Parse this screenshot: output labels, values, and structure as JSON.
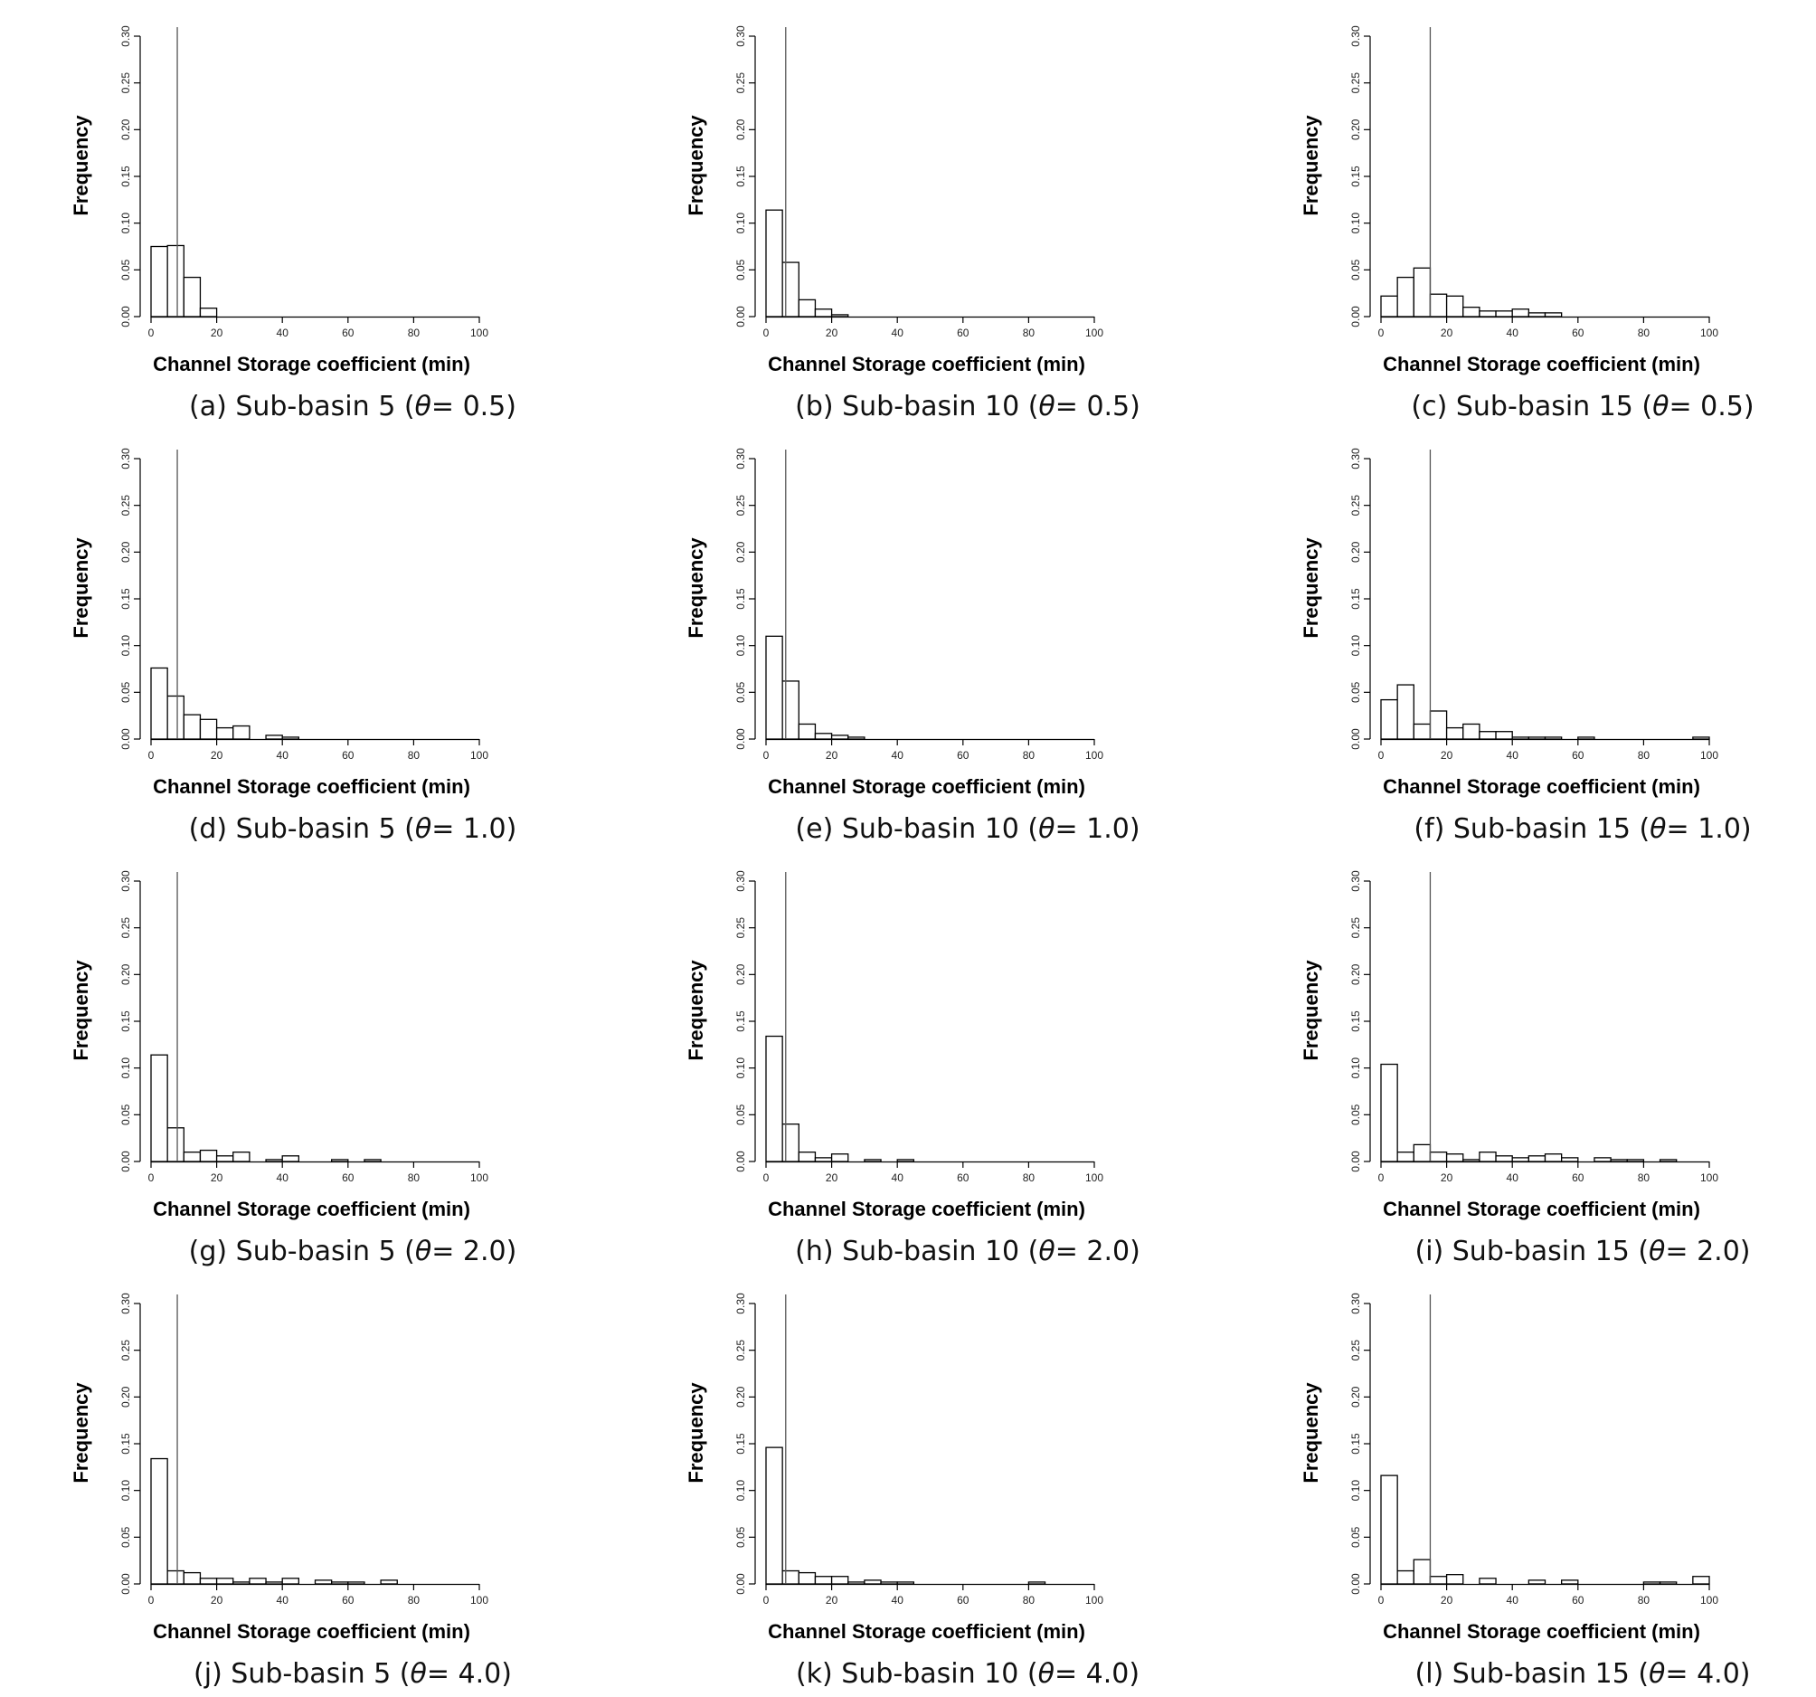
{
  "colors": {
    "bar_fill": "#ffffff",
    "bar_stroke": "#000000",
    "axis": "#000000",
    "ref_line": "#555555"
  },
  "chart_data": [
    {
      "id": "a",
      "type": "bar",
      "caption_prefix": "(a) Sub-basin 5 (",
      "theta_symbol": "θ",
      "caption_suffix": "= 0.5)",
      "xlabel": "Channel Storage coefficient (min)",
      "ylabel": "Frequency",
      "xlim": [
        0,
        100
      ],
      "ylim": [
        0,
        0.3
      ],
      "xticks": [
        "0",
        "20",
        "40",
        "60",
        "80",
        "100"
      ],
      "yticks": [
        "0.00",
        "0.05",
        "0.10",
        "0.15",
        "0.20",
        "0.25",
        "0.30"
      ],
      "bin_width": 5,
      "bins": [
        0,
        5,
        10,
        15
      ],
      "values": [
        0.075,
        0.076,
        0.042,
        0.009
      ],
      "ref_line": 8
    },
    {
      "id": "b",
      "type": "bar",
      "caption_prefix": "(b) Sub-basin 10 (",
      "theta_symbol": "θ",
      "caption_suffix": "= 0.5)",
      "xlabel": "Channel Storage coefficient (min)",
      "ylabel": "Frequency",
      "xlim": [
        0,
        100
      ],
      "ylim": [
        0,
        0.3
      ],
      "xticks": [
        "0",
        "20",
        "40",
        "60",
        "80",
        "100"
      ],
      "yticks": [
        "0.00",
        "0.05",
        "0.10",
        "0.15",
        "0.20",
        "0.25",
        "0.30"
      ],
      "bin_width": 5,
      "bins": [
        0,
        5,
        10,
        15,
        20
      ],
      "values": [
        0.114,
        0.058,
        0.018,
        0.008,
        0.002
      ],
      "ref_line": 6
    },
    {
      "id": "c",
      "type": "bar",
      "caption_prefix": "(c) Sub-basin 15 (",
      "theta_symbol": "θ",
      "caption_suffix": "= 0.5)",
      "xlabel": "Channel Storage coefficient (min)",
      "ylabel": "Frequency",
      "xlim": [
        0,
        100
      ],
      "ylim": [
        0,
        0.3
      ],
      "xticks": [
        "0",
        "20",
        "40",
        "60",
        "80",
        "100"
      ],
      "yticks": [
        "0.00",
        "0.05",
        "0.10",
        "0.15",
        "0.20",
        "0.25",
        "0.30"
      ],
      "bin_width": 5,
      "bins": [
        0,
        5,
        10,
        15,
        20,
        25,
        30,
        35,
        40,
        45,
        50
      ],
      "values": [
        0.022,
        0.042,
        0.052,
        0.024,
        0.022,
        0.01,
        0.006,
        0.006,
        0.008,
        0.004,
        0.004
      ],
      "ref_line": 15
    },
    {
      "id": "d",
      "type": "bar",
      "caption_prefix": "(d) Sub-basin 5 (",
      "theta_symbol": "θ",
      "caption_suffix": "= 1.0)",
      "xlabel": "Channel Storage coefficient (min)",
      "ylabel": "Frequency",
      "xlim": [
        0,
        100
      ],
      "ylim": [
        0,
        0.3
      ],
      "xticks": [
        "0",
        "20",
        "40",
        "60",
        "80",
        "100"
      ],
      "yticks": [
        "0.00",
        "0.05",
        "0.10",
        "0.15",
        "0.20",
        "0.25",
        "0.30"
      ],
      "bin_width": 5,
      "bins": [
        0,
        5,
        10,
        15,
        20,
        25,
        35,
        40
      ],
      "values": [
        0.076,
        0.046,
        0.026,
        0.021,
        0.012,
        0.014,
        0.004,
        0.002
      ],
      "ref_line": 8
    },
    {
      "id": "e",
      "type": "bar",
      "caption_prefix": "(e) Sub-basin 10 (",
      "theta_symbol": "θ",
      "caption_suffix": "= 1.0)",
      "xlabel": "Channel Storage coefficient (min)",
      "ylabel": "Frequency",
      "xlim": [
        0,
        100
      ],
      "ylim": [
        0,
        0.3
      ],
      "xticks": [
        "0",
        "20",
        "40",
        "60",
        "80",
        "100"
      ],
      "yticks": [
        "0.00",
        "0.05",
        "0.10",
        "0.15",
        "0.20",
        "0.25",
        "0.30"
      ],
      "bin_width": 5,
      "bins": [
        0,
        5,
        10,
        15,
        20,
        25
      ],
      "values": [
        0.11,
        0.062,
        0.016,
        0.006,
        0.004,
        0.002
      ],
      "ref_line": 6
    },
    {
      "id": "f",
      "type": "bar",
      "caption_prefix": "(f) Sub-basin 15 (",
      "theta_symbol": "θ",
      "caption_suffix": "= 1.0)",
      "xlabel": "Channel Storage coefficient (min)",
      "ylabel": "Frequency",
      "xlim": [
        0,
        100
      ],
      "ylim": [
        0,
        0.3
      ],
      "xticks": [
        "0",
        "20",
        "40",
        "60",
        "80",
        "100"
      ],
      "yticks": [
        "0.00",
        "0.05",
        "0.10",
        "0.15",
        "0.20",
        "0.25",
        "0.30"
      ],
      "bin_width": 5,
      "bins": [
        0,
        5,
        10,
        15,
        20,
        25,
        30,
        35,
        40,
        45,
        50,
        60,
        95
      ],
      "values": [
        0.042,
        0.058,
        0.016,
        0.03,
        0.012,
        0.016,
        0.008,
        0.008,
        0.002,
        0.002,
        0.002,
        0.002,
        0.002
      ],
      "ref_line": 15
    },
    {
      "id": "g",
      "type": "bar",
      "caption_prefix": "(g) Sub-basin 5 (",
      "theta_symbol": "θ",
      "caption_suffix": "= 2.0)",
      "xlabel": "Channel Storage coefficient (min)",
      "ylabel": "Frequency",
      "xlim": [
        0,
        100
      ],
      "ylim": [
        0,
        0.3
      ],
      "xticks": [
        "0",
        "20",
        "40",
        "60",
        "80",
        "100"
      ],
      "yticks": [
        "0.00",
        "0.05",
        "0.10",
        "0.15",
        "0.20",
        "0.25",
        "0.30"
      ],
      "bin_width": 5,
      "bins": [
        0,
        5,
        10,
        15,
        20,
        25,
        35,
        40,
        55,
        65
      ],
      "values": [
        0.114,
        0.036,
        0.01,
        0.012,
        0.006,
        0.01,
        0.002,
        0.006,
        0.002,
        0.002
      ],
      "ref_line": 8
    },
    {
      "id": "h",
      "type": "bar",
      "caption_prefix": "(h) Sub-basin 10 (",
      "theta_symbol": "θ",
      "caption_suffix": "= 2.0)",
      "xlabel": "Channel Storage coefficient (min)",
      "ylabel": "Frequency",
      "xlim": [
        0,
        100
      ],
      "ylim": [
        0,
        0.3
      ],
      "xticks": [
        "0",
        "20",
        "40",
        "60",
        "80",
        "100"
      ],
      "yticks": [
        "0.00",
        "0.05",
        "0.10",
        "0.15",
        "0.20",
        "0.25",
        "0.30"
      ],
      "bin_width": 5,
      "bins": [
        0,
        5,
        10,
        15,
        20,
        30,
        40
      ],
      "values": [
        0.134,
        0.04,
        0.01,
        0.004,
        0.008,
        0.002,
        0.002
      ],
      "ref_line": 6
    },
    {
      "id": "i",
      "type": "bar",
      "caption_prefix": "(i) Sub-basin 15 (",
      "theta_symbol": "θ",
      "caption_suffix": "= 2.0)",
      "xlabel": "Channel Storage coefficient (min)",
      "ylabel": "Frequency",
      "xlim": [
        0,
        100
      ],
      "ylim": [
        0,
        0.3
      ],
      "xticks": [
        "0",
        "20",
        "40",
        "60",
        "80",
        "100"
      ],
      "yticks": [
        "0.00",
        "0.05",
        "0.10",
        "0.15",
        "0.20",
        "0.25",
        "0.30"
      ],
      "bin_width": 5,
      "bins": [
        0,
        5,
        10,
        15,
        20,
        25,
        30,
        35,
        40,
        45,
        50,
        55,
        65,
        70,
        75,
        85
      ],
      "values": [
        0.104,
        0.01,
        0.018,
        0.01,
        0.008,
        0.002,
        0.01,
        0.006,
        0.004,
        0.006,
        0.008,
        0.004,
        0.004,
        0.002,
        0.002,
        0.002
      ],
      "ref_line": 15
    },
    {
      "id": "j",
      "type": "bar",
      "caption_prefix": "(j) Sub-basin 5 (",
      "theta_symbol": "θ",
      "caption_suffix": "= 4.0)",
      "xlabel": "Channel Storage coefficient (min)",
      "ylabel": "Frequency",
      "xlim": [
        0,
        100
      ],
      "ylim": [
        0,
        0.3
      ],
      "xticks": [
        "0",
        "20",
        "40",
        "60",
        "80",
        "100"
      ],
      "yticks": [
        "0.00",
        "0.05",
        "0.10",
        "0.15",
        "0.20",
        "0.25",
        "0.30"
      ],
      "bin_width": 5,
      "bins": [
        0,
        5,
        10,
        15,
        20,
        25,
        30,
        35,
        40,
        50,
        55,
        60,
        70
      ],
      "values": [
        0.134,
        0.014,
        0.012,
        0.006,
        0.006,
        0.002,
        0.006,
        0.002,
        0.006,
        0.004,
        0.002,
        0.002,
        0.004
      ],
      "ref_line": 8
    },
    {
      "id": "k",
      "type": "bar",
      "caption_prefix": "(k) Sub-basin 10 (",
      "theta_symbol": "θ",
      "caption_suffix": "= 4.0)",
      "xlabel": "Channel Storage coefficient (min)",
      "ylabel": "Frequency",
      "xlim": [
        0,
        100
      ],
      "ylim": [
        0,
        0.3
      ],
      "xticks": [
        "0",
        "20",
        "40",
        "60",
        "80",
        "100"
      ],
      "yticks": [
        "0.00",
        "0.05",
        "0.10",
        "0.15",
        "0.20",
        "0.25",
        "0.30"
      ],
      "bin_width": 5,
      "bins": [
        0,
        5,
        10,
        15,
        20,
        25,
        30,
        35,
        40,
        80
      ],
      "values": [
        0.146,
        0.014,
        0.012,
        0.008,
        0.008,
        0.002,
        0.004,
        0.002,
        0.002,
        0.002
      ],
      "ref_line": 6
    },
    {
      "id": "l",
      "type": "bar",
      "caption_prefix": "(l) Sub-basin 15 (",
      "theta_symbol": "θ",
      "caption_suffix": "= 4.0)",
      "xlabel": "Channel Storage coefficient (min)",
      "ylabel": "Frequency",
      "xlim": [
        0,
        100
      ],
      "ylim": [
        0,
        0.3
      ],
      "xticks": [
        "0",
        "20",
        "40",
        "60",
        "80",
        "100"
      ],
      "yticks": [
        "0.00",
        "0.05",
        "0.10",
        "0.15",
        "0.20",
        "0.25",
        "0.30"
      ],
      "bin_width": 5,
      "bins": [
        0,
        5,
        10,
        15,
        20,
        30,
        45,
        55,
        80,
        85,
        95
      ],
      "values": [
        0.116,
        0.014,
        0.026,
        0.008,
        0.01,
        0.006,
        0.004,
        0.004,
        0.002,
        0.002,
        0.008
      ],
      "ref_line": 15
    }
  ]
}
